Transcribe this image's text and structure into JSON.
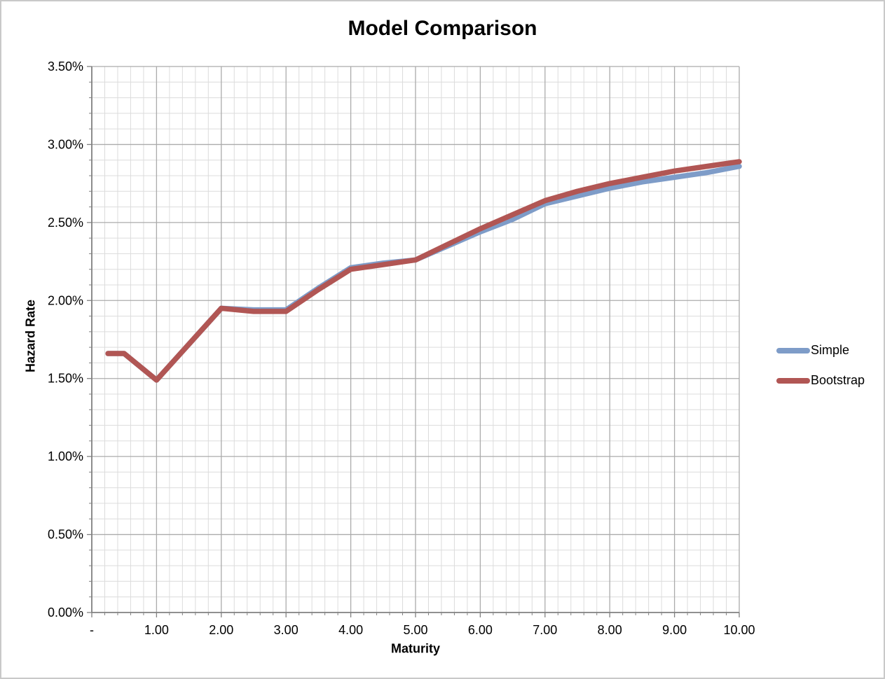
{
  "chart_data": {
    "type": "line",
    "title": "Model Comparison",
    "xlabel": "Maturity",
    "ylabel": "Hazard Rate",
    "xlim": [
      0,
      10
    ],
    "ylim": [
      0,
      3.5
    ],
    "y_unit": "%",
    "grid": true,
    "legend_position": "right",
    "x_major_ticks": {
      "values": [
        0,
        1,
        2,
        3,
        4,
        5,
        6,
        7,
        8,
        9,
        10
      ],
      "labels": [
        "-",
        "1.00",
        "2.00",
        "3.00",
        "4.00",
        "5.00",
        "6.00",
        "7.00",
        "8.00",
        "9.00",
        "10.00"
      ]
    },
    "y_major_ticks": {
      "values": [
        0,
        0.5,
        1,
        1.5,
        2,
        2.5,
        3,
        3.5
      ],
      "labels": [
        "0.00%",
        "0.50%",
        "1.00%",
        "1.50%",
        "2.00%",
        "2.50%",
        "3.00%",
        "3.50%"
      ]
    },
    "x_minor_step": 0.2,
    "y_minor_step": 0.1,
    "x": [
      0.25,
      0.5,
      1,
      1.5,
      2,
      2.5,
      3,
      3.5,
      4,
      4.5,
      5,
      5.5,
      6,
      6.5,
      7,
      7.5,
      8,
      8.5,
      9,
      9.5,
      10
    ],
    "series": [
      {
        "name": "Simple",
        "color": "#7E9CC8",
        "values": [
          1.66,
          1.66,
          1.49,
          1.72,
          1.95,
          1.94,
          1.94,
          2.08,
          2.21,
          2.24,
          2.26,
          2.35,
          2.44,
          2.52,
          2.62,
          2.67,
          2.72,
          2.76,
          2.79,
          2.82,
          2.86
        ]
      },
      {
        "name": "Bootstrap",
        "color": "#B15654",
        "values": [
          1.66,
          1.66,
          1.49,
          1.72,
          1.95,
          1.93,
          1.93,
          2.07,
          2.2,
          2.23,
          2.26,
          2.36,
          2.46,
          2.55,
          2.64,
          2.7,
          2.75,
          2.79,
          2.83,
          2.86,
          2.89
        ]
      }
    ],
    "colors": {
      "minor_grid": "#DCDCDC",
      "major_grid": "#ABABAB",
      "axis": "#808080",
      "tick": "#808080",
      "text": "#000000",
      "title": "#000000"
    },
    "line_width": 7.5
  }
}
